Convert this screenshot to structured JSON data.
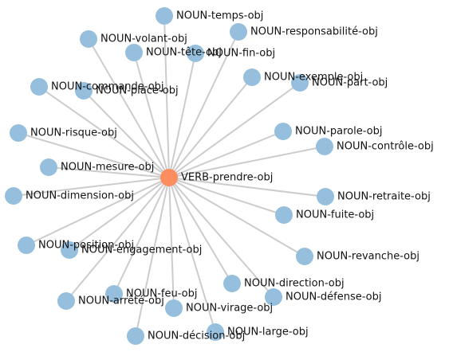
{
  "colors": {
    "center_node": "#fc8d5e",
    "leaf_node": "#95bfdd",
    "edge": "#cccccc"
  },
  "center": {
    "label": "VERB-prendre-obj"
  },
  "nodes": [
    {
      "label": "NOUN-temps-obj"
    },
    {
      "label": "NOUN-responsabilité-obj"
    },
    {
      "label": "NOUN-volant-obj"
    },
    {
      "label": "NOUN-tête-obj"
    },
    {
      "label": "NOUN-fin-obj"
    },
    {
      "label": "NOUN-exemple-obj"
    },
    {
      "label": "NOUN-part-obj"
    },
    {
      "label": "NOUN-commande-obj"
    },
    {
      "label": "NOUN-place-obj"
    },
    {
      "label": "NOUN-parole-obj"
    },
    {
      "label": "NOUN-risque-obj"
    },
    {
      "label": "NOUN-contrôle-obj"
    },
    {
      "label": "NOUN-mesure-obj"
    },
    {
      "label": "NOUN-dimension-obj"
    },
    {
      "label": "NOUN-retraite-obj"
    },
    {
      "label": "NOUN-fuite-obj"
    },
    {
      "label": "NOUN-position-obj"
    },
    {
      "label": "NOUN-engagement-obj"
    },
    {
      "label": "NOUN-revanche-obj"
    },
    {
      "label": "NOUN-direction-obj"
    },
    {
      "label": "NOUN-feu-obj"
    },
    {
      "label": "NOUN-défense-obj"
    },
    {
      "label": "NOUN-arrêté-obj"
    },
    {
      "label": "NOUN-virage-obj"
    },
    {
      "label": "NOUN-large-obj"
    },
    {
      "label": "NOUN-décision-obj"
    }
  ]
}
